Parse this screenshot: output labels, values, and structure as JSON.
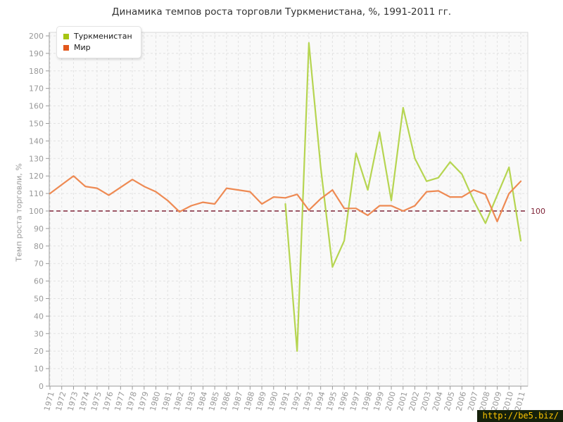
{
  "chart_data": {
    "type": "line",
    "title": "Динамика темпов роста торговли Туркменистана, %, 1991-2011 гг.",
    "xlabel": "",
    "ylabel": "Темп роста торговли, %",
    "ylim": [
      0,
      200
    ],
    "ytick_step": 10,
    "grid": true,
    "legend_position": "top-left",
    "categories": [
      1971,
      1972,
      1973,
      1974,
      1975,
      1976,
      1977,
      1978,
      1979,
      1980,
      1981,
      1982,
      1983,
      1984,
      1985,
      1986,
      1987,
      1988,
      1989,
      1990,
      1991,
      1992,
      1993,
      1994,
      1995,
      1996,
      1997,
      1998,
      1999,
      2000,
      2001,
      2002,
      2003,
      2004,
      2005,
      2006,
      2007,
      2008,
      2009,
      2010,
      2011
    ],
    "series": [
      {
        "name": "Туркменистан",
        "slug": "turkmenistan",
        "line_color": "#b6d551",
        "marker_color": "#a6c513",
        "values": [
          null,
          null,
          null,
          null,
          null,
          null,
          null,
          null,
          null,
          null,
          null,
          null,
          null,
          null,
          null,
          null,
          null,
          null,
          null,
          null,
          104,
          20,
          196,
          125,
          68,
          83,
          133,
          112,
          145,
          106,
          159,
          130,
          117,
          119,
          128,
          121,
          106,
          93,
          109,
          125,
          83
        ]
      },
      {
        "name": "Мир",
        "slug": "mir",
        "line_color": "#ee8a53",
        "marker_color": "#e2571c",
        "values": [
          110,
          115,
          120,
          114,
          113,
          109,
          113.5,
          118,
          114,
          111,
          106,
          99.5,
          103,
          105,
          104,
          113,
          112,
          111,
          104,
          108,
          107.5,
          109.5,
          100.5,
          107,
          112,
          101.5,
          101.5,
          97.5,
          103,
          103,
          100,
          103,
          111,
          111.5,
          108,
          108,
          112,
          109.5,
          94,
          110,
          117
        ]
      }
    ],
    "ref_line": {
      "value": 100,
      "label": "100",
      "color": "#7e2337"
    },
    "axis_color": "#9a9a9a",
    "grid_color": "#e2e2e2",
    "plot_background": "#f9f9f9",
    "tick_label_color": "#999999"
  },
  "watermark": {
    "text": "http://be5.biz/"
  }
}
